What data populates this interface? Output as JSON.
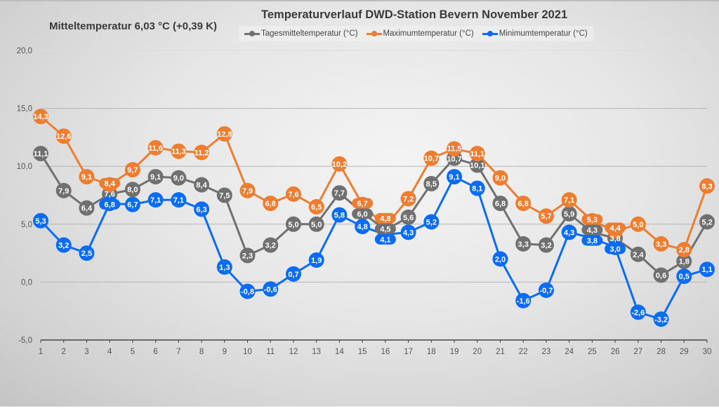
{
  "chart_data": {
    "type": "line",
    "title": "Temperaturverlauf  DWD-Station  Bevern November 2021",
    "subtitle": "Mitteltemperatur 6,03 °C (+0,39 K)",
    "xlabel": "",
    "ylabel": "",
    "x": [
      1,
      2,
      3,
      4,
      5,
      6,
      7,
      8,
      9,
      10,
      11,
      12,
      13,
      14,
      15,
      16,
      17,
      18,
      19,
      20,
      21,
      22,
      23,
      24,
      25,
      26,
      27,
      28,
      29,
      30
    ],
    "ylim": [
      -5,
      20
    ],
    "yticks": [
      -5,
      0,
      5,
      10,
      15,
      20
    ],
    "ytick_labels": [
      "-5,0",
      "0,0",
      "5,0",
      "10,0",
      "15,0",
      "20,0"
    ],
    "grid": true,
    "legend_position": "top",
    "series": [
      {
        "name": "Tagesmitteltemperatur (°C)",
        "color": "#707070",
        "values": [
          11.1,
          7.9,
          6.4,
          7.6,
          8.0,
          9.1,
          9.0,
          8.4,
          7.5,
          2.3,
          3.2,
          5.0,
          5.0,
          7.7,
          6.0,
          4.5,
          5.6,
          8.5,
          10.7,
          10.1,
          6.8,
          3.3,
          3.2,
          5.9,
          4.3,
          3.8,
          2.4,
          0.6,
          1.8,
          5.2
        ]
      },
      {
        "name": "Maximumtemperatur (°C)",
        "color": "#ED7D31",
        "values": [
          14.3,
          12.6,
          9.1,
          8.4,
          9.7,
          11.6,
          11.3,
          11.2,
          12.8,
          7.9,
          6.8,
          7.6,
          6.5,
          10.2,
          6.7,
          4.8,
          7.2,
          10.7,
          11.5,
          11.1,
          9.0,
          6.8,
          5.7,
          7.1,
          5.3,
          4.4,
          5.0,
          3.3,
          2.8,
          8.3
        ]
      },
      {
        "name": "Minimumtemperatur (°C)",
        "color": "#0A6CF5",
        "values": [
          5.3,
          3.2,
          2.5,
          6.8,
          6.7,
          7.1,
          7.1,
          6.3,
          1.3,
          -0.8,
          -0.6,
          0.7,
          1.9,
          5.8,
          4.8,
          4.1,
          4.3,
          5.2,
          9.1,
          8.1,
          2.0,
          -1.6,
          -0.7,
          4.3,
          3.8,
          3.0,
          -2.6,
          -3.2,
          0.5,
          1.1
        ]
      }
    ]
  }
}
